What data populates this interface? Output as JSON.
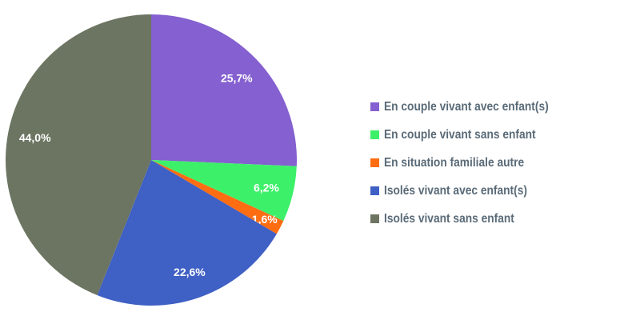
{
  "chart_data": {
    "type": "pie",
    "categories": [
      "En couple vivant avec enfant(s)",
      "En couple vivant sans enfant",
      "En situation familiale autre",
      "Isolés vivant avec enfant(s)",
      "Isolés vivant sans enfant"
    ],
    "values": [
      25.7,
      6.2,
      1.6,
      22.6,
      44.0
    ],
    "value_labels": [
      "25,7%",
      "6,2%",
      "1,6%",
      "22,6%",
      "44,0%"
    ],
    "colors": [
      "#8560d0",
      "#3df06a",
      "#ff6d12",
      "#3f60c4",
      "#6c7562"
    ],
    "start_angle": "12 o'clock, clockwise",
    "legend_position": "right",
    "title": ""
  }
}
